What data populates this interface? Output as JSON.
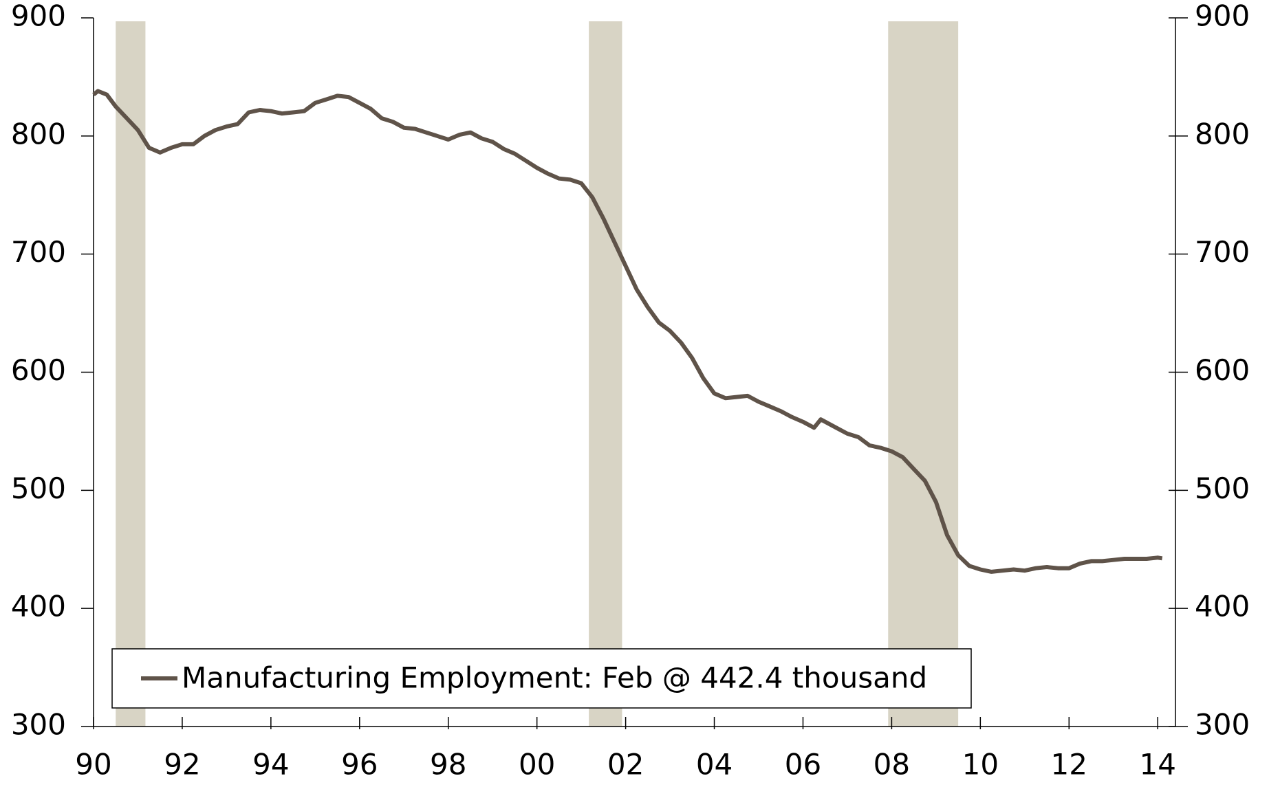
{
  "chart_data": {
    "type": "line",
    "x": [
      1990.0,
      1990.1,
      1990.3,
      1990.5,
      1990.75,
      1991.0,
      1991.25,
      1991.5,
      1991.75,
      1992.0,
      1992.25,
      1992.5,
      1992.75,
      1993.0,
      1993.25,
      1993.5,
      1993.75,
      1994.0,
      1994.25,
      1994.5,
      1994.75,
      1995.0,
      1995.25,
      1995.5,
      1995.75,
      1996.0,
      1996.25,
      1996.5,
      1996.75,
      1997.0,
      1997.25,
      1997.5,
      1997.75,
      1998.0,
      1998.25,
      1998.5,
      1998.75,
      1999.0,
      1999.25,
      1999.5,
      1999.75,
      2000.0,
      2000.25,
      2000.5,
      2000.75,
      2001.0,
      2001.25,
      2001.5,
      2001.75,
      2002.0,
      2002.25,
      2002.5,
      2002.75,
      2003.0,
      2003.25,
      2003.5,
      2003.75,
      2004.0,
      2004.25,
      2004.5,
      2004.75,
      2005.0,
      2005.25,
      2005.5,
      2005.75,
      2006.0,
      2006.25,
      2006.4,
      2006.75,
      2007.0,
      2007.25,
      2007.5,
      2007.75,
      2008.0,
      2008.25,
      2008.5,
      2008.75,
      2009.0,
      2009.25,
      2009.5,
      2009.75,
      2010.0,
      2010.25,
      2010.5,
      2010.75,
      2011.0,
      2011.25,
      2011.5,
      2011.75,
      2012.0,
      2012.25,
      2012.5,
      2012.75,
      2013.0,
      2013.25,
      2013.5,
      2013.75,
      2014.0,
      2014.1
    ],
    "series": [
      {
        "name": "Manufacturing Employment: Feb @ 442.4 thousand",
        "color": "#5f5349",
        "values": [
          835,
          838,
          835,
          825,
          815,
          805,
          790,
          786,
          790,
          793,
          793,
          800,
          805,
          808,
          810,
          820,
          822,
          821,
          819,
          820,
          821,
          828,
          831,
          834,
          833,
          828,
          823,
          815,
          812,
          807,
          806,
          803,
          800,
          797,
          801,
          803,
          798,
          795,
          789,
          785,
          779,
          773,
          768,
          764,
          763,
          760,
          748,
          730,
          710,
          690,
          670,
          655,
          642,
          635,
          625,
          612,
          595,
          582,
          578,
          579,
          580,
          575,
          571,
          567,
          562,
          558,
          553,
          560,
          553,
          548,
          545,
          538,
          536,
          533,
          528,
          518,
          508,
          490,
          462,
          445,
          436,
          433,
          431,
          432,
          433,
          432,
          434,
          435,
          434,
          434,
          438,
          440,
          440,
          441,
          442,
          442,
          442,
          443,
          442.4
        ]
      }
    ],
    "shaded_ranges": [
      [
        1990.5,
        1991.17
      ],
      [
        2001.17,
        2001.92
      ],
      [
        2007.92,
        2009.5
      ]
    ],
    "shade_color": "#d8d4c5",
    "xlim": [
      1990,
      2014.4
    ],
    "xticks": [
      {
        "value": 1990,
        "label": "90"
      },
      {
        "value": 1992,
        "label": "92"
      },
      {
        "value": 1994,
        "label": "94"
      },
      {
        "value": 1996,
        "label": "96"
      },
      {
        "value": 1998,
        "label": "98"
      },
      {
        "value": 2000,
        "label": "00"
      },
      {
        "value": 2002,
        "label": "02"
      },
      {
        "value": 2004,
        "label": "04"
      },
      {
        "value": 2006,
        "label": "06"
      },
      {
        "value": 2008,
        "label": "08"
      },
      {
        "value": 2010,
        "label": "10"
      },
      {
        "value": 2012,
        "label": "12"
      },
      {
        "value": 2014,
        "label": "14"
      }
    ],
    "ylim": [
      300,
      900
    ],
    "yticks": [
      300,
      400,
      500,
      600,
      700,
      800,
      900
    ],
    "y2lim": [
      300,
      900
    ],
    "y2ticks": [
      300,
      400,
      500,
      600,
      700,
      800,
      900
    ],
    "legend": "bottom-left"
  }
}
